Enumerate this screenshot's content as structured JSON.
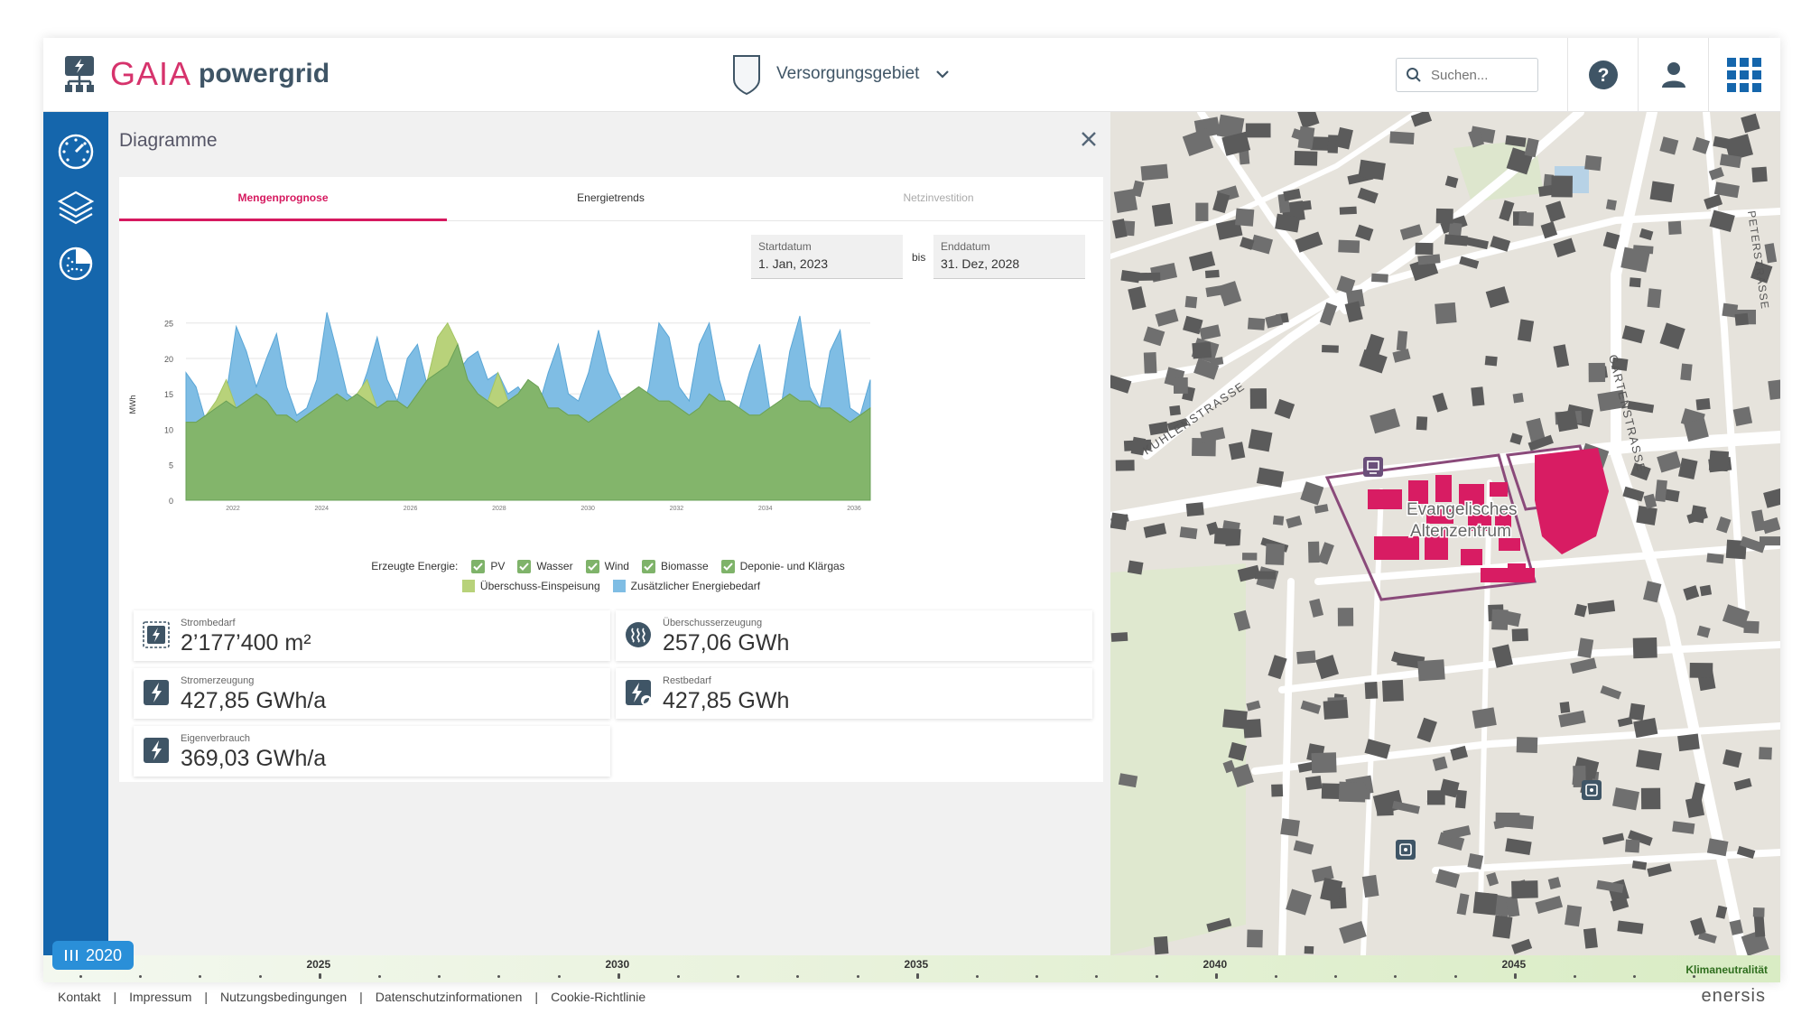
{
  "header": {
    "brand_left": "GAIA",
    "brand_right": "powergrid",
    "area_label": "Versorgungsgebiet",
    "search_placeholder": "Suchen...",
    "help_icon": "help-icon",
    "user_icon": "user-icon",
    "apps_icon": "apps-grid-icon"
  },
  "sidebar": {
    "items": [
      {
        "icon": "dashboard-gauge-icon"
      },
      {
        "icon": "layers-icon"
      },
      {
        "icon": "pie-chart-icon"
      }
    ]
  },
  "panel": {
    "title": "Diagramme",
    "tabs": [
      {
        "label": "Mengenprognose",
        "state": "active"
      },
      {
        "label": "Energietrends",
        "state": "normal"
      },
      {
        "label": "Netzinvestition",
        "state": "disabled"
      }
    ],
    "start_label": "Startdatum",
    "start_value": "1. Jan, 2023",
    "between": "bis",
    "end_label": "Enddatum",
    "end_value": "31. Dez, 2028",
    "legend_title": "Erzeugte Energie:",
    "legend_checks": [
      "PV",
      "Wasser",
      "Wind",
      "Biomasse",
      "Deponie- und Klärgas"
    ],
    "legend_series": [
      "Überschuss-Einspeisung",
      "Zusätzlicher Energiebedarf"
    ],
    "kpis": [
      {
        "label": "Strombedarf",
        "value": "2’177’400 m²",
        "icon": "power-area-icon"
      },
      {
        "label": "Überschusserzeugung",
        "value": "257,06 GWh",
        "icon": "heat-icon"
      },
      {
        "label": "Stromerzeugung",
        "value": "427,85 GWh/a",
        "icon": "power-icon"
      },
      {
        "label": "Restbedarf",
        "value": "427,85 GWh",
        "icon": "power-leaf-icon"
      },
      {
        "label": "Eigenverbrauch",
        "value": "369,03 GWh/a",
        "icon": "power-icon"
      }
    ]
  },
  "chart_data": {
    "type": "area",
    "title": "",
    "ylabel": "MWh",
    "xlabel": "",
    "ylim": [
      0,
      27
    ],
    "yticks": [
      0,
      5,
      10,
      15,
      20,
      25
    ],
    "xticks": [
      "2022",
      "2024",
      "2026",
      "2028",
      "2030",
      "2032",
      "2034",
      "2036"
    ],
    "grid": true,
    "colors": {
      "green": "#7fb36a",
      "olive": "#b8d27a",
      "blue": "#7fbde4"
    },
    "series": [
      {
        "name": "Zusätzlicher Energiebedarf",
        "values": [
          18,
          16,
          11,
          13,
          15,
          24.5,
          21,
          16,
          20,
          23.5,
          16,
          12,
          13,
          17,
          26.5,
          21,
          15,
          14,
          18,
          23,
          17,
          14,
          20,
          22,
          16,
          14,
          13,
          18,
          20,
          21,
          17,
          18,
          15,
          16,
          14,
          13,
          18,
          22,
          15,
          14,
          18,
          24,
          18,
          15,
          12,
          11,
          16,
          25,
          23,
          16,
          14,
          22,
          25,
          17,
          12,
          13,
          18,
          22,
          13,
          12,
          21,
          26,
          16,
          13,
          21,
          24,
          13,
          12,
          17
        ]
      },
      {
        "name": "Erzeugte Energie",
        "values": [
          11,
          11,
          12,
          13,
          14,
          13,
          14,
          15,
          14,
          12,
          12,
          11,
          12,
          13,
          14,
          15,
          14,
          15,
          14,
          13,
          14,
          14,
          13,
          15,
          17,
          18,
          19,
          22,
          17,
          15,
          14,
          13,
          14,
          15,
          17,
          16,
          13,
          13,
          12,
          12,
          11,
          12,
          13,
          14,
          15,
          16,
          15,
          14,
          14,
          13,
          12,
          13,
          15,
          14,
          14,
          13,
          12,
          12,
          13,
          14,
          15,
          14,
          14,
          13,
          13,
          12,
          11,
          12,
          13
        ]
      },
      {
        "name": "Überschuss-Einspeisung",
        "values": [
          11,
          11,
          12,
          14,
          17,
          13,
          14,
          15,
          14,
          12,
          12,
          11,
          12,
          13,
          14,
          15,
          14,
          15,
          17,
          13,
          14,
          14,
          13,
          15,
          17,
          23,
          25,
          22,
          17,
          15,
          14,
          18,
          14,
          15,
          17,
          16,
          13,
          13,
          12,
          12,
          11,
          12,
          13,
          14,
          15,
          16,
          15,
          14,
          14,
          13,
          12,
          13,
          15,
          14,
          14,
          13,
          12,
          12,
          13,
          14,
          15,
          14,
          14,
          13,
          13,
          12,
          11,
          12,
          13
        ]
      }
    ]
  },
  "map": {
    "streets": [
      "KUHLENSTRASSE",
      "GARTENSTRASSE",
      "PETERSTRASSE"
    ],
    "poi_label_1": "Evangelisches",
    "poi_label_2": "Altenzentrum"
  },
  "timeline": {
    "current": "2020",
    "years": [
      "2025",
      "2030",
      "2035",
      "2040",
      "2045"
    ],
    "end_label": "Klimaneutralität"
  },
  "footer": {
    "links": [
      "Kontakt",
      "Impressum",
      "Nutzungsbedingungen",
      "Datenschutzinformationen",
      "Cookie-Richtlinie"
    ],
    "brand": "enersis"
  }
}
